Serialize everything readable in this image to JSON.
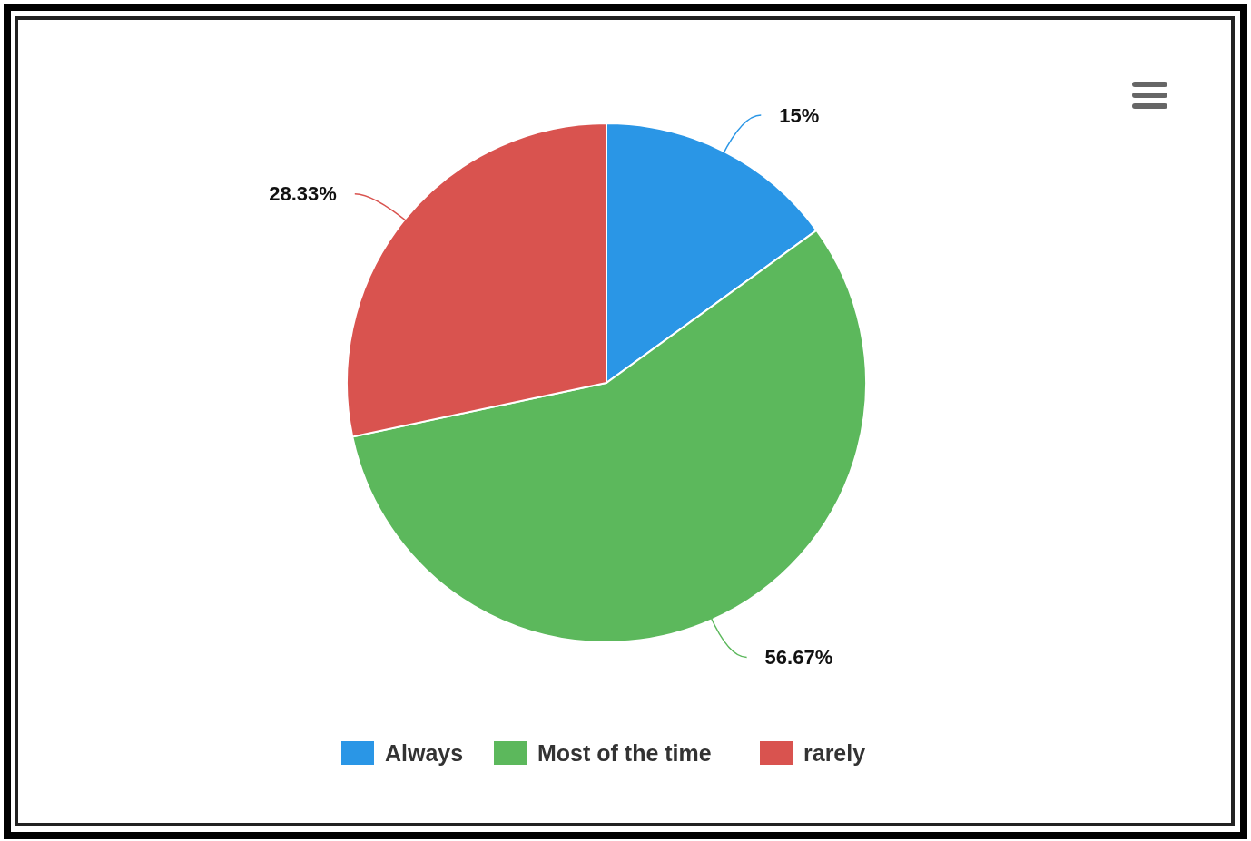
{
  "chart_data": {
    "type": "pie",
    "categories": [
      "Always",
      "Most of the time",
      "rarely"
    ],
    "values": [
      15,
      56.67,
      28.33
    ],
    "colors": [
      "#2a96e6",
      "#5cb85c",
      "#d9534f"
    ],
    "value_labels": [
      "15%",
      "56.67%",
      "28.33%"
    ],
    "legend": "bottom"
  }
}
